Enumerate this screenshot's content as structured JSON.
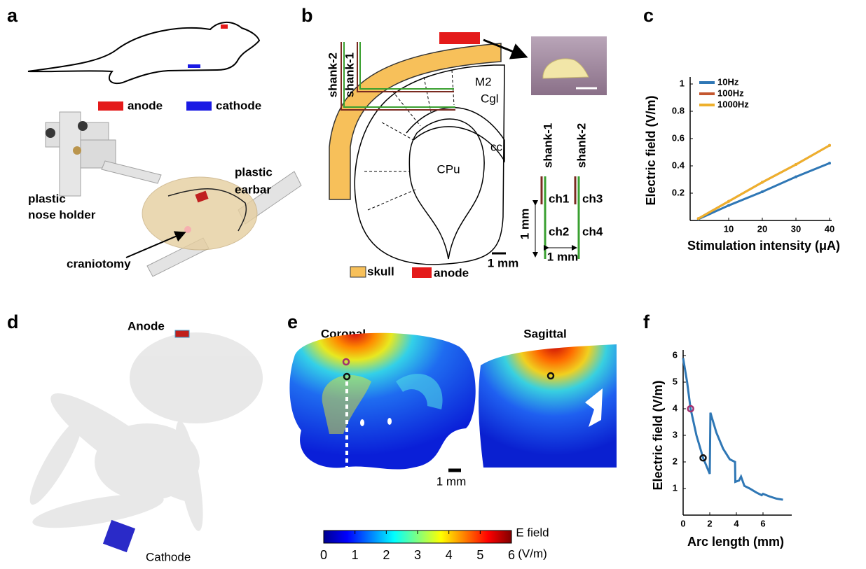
{
  "panels": {
    "labels": [
      "a",
      "b",
      "c",
      "d",
      "e",
      "f"
    ]
  },
  "panel_a": {
    "anode": "anode",
    "cathode": "cathode",
    "earbar": [
      "plastic",
      "earbar"
    ],
    "nose_holder": [
      "plastic",
      "nose holder"
    ],
    "craniotomy": "craniotomy"
  },
  "panel_b": {
    "shanks_left": [
      "shank-2",
      "shank-1"
    ],
    "regions": [
      "M2",
      "Cgl",
      "cc",
      "CPu"
    ],
    "shanks_right": [
      "shank-1",
      "shank-2"
    ],
    "channels": [
      "ch1",
      "ch3",
      "ch2",
      "ch4"
    ],
    "scale_vertical": "1 mm",
    "scale_horizontal": "1 mm",
    "scale_bar": "1 mm",
    "legend": [
      "skull",
      "anode"
    ]
  },
  "panel_d": {
    "anode": "Anode",
    "cathode": "Cathode"
  },
  "panel_e": {
    "views": [
      "Coronal",
      "Sagittal"
    ],
    "scale_bar": "1 mm",
    "colorbar": {
      "lim": [
        0,
        6
      ],
      "ticks": [
        0,
        1,
        2,
        3,
        4,
        5,
        6
      ],
      "label": [
        "E field",
        "(V/m)"
      ]
    }
  },
  "chart_data": [
    {
      "type": "line",
      "xlabel": "Stimulation intensity (μA)",
      "ylabel": "Electric field (V/m)",
      "xlim": [
        0,
        40
      ],
      "ylim": [
        0,
        1
      ],
      "xticks": [
        10,
        20,
        30,
        40
      ],
      "yticks": [
        0.2,
        0.4,
        0.6,
        0.8,
        1
      ],
      "x": [
        1,
        10,
        20,
        30,
        40
      ],
      "legend": "upper left",
      "series": [
        {
          "name": "10Hz",
          "color": "#2f77b5",
          "values": [
            0.01,
            0.11,
            0.21,
            0.32,
            0.42
          ]
        },
        {
          "name": "100Hz",
          "color": "#c4572f",
          "values": [
            0.014,
            0.14,
            0.28,
            0.41,
            0.55
          ]
        },
        {
          "name": "1000Hz",
          "color": "#eeb02c",
          "values": [
            0.014,
            0.14,
            0.28,
            0.41,
            0.55
          ]
        }
      ]
    },
    {
      "type": "line",
      "xlabel": "Arc length (mm)",
      "ylabel": "Electric field (V/m)",
      "xlim": [
        0,
        8
      ],
      "ylim": [
        0,
        6
      ],
      "xticks": [
        0,
        2,
        4,
        6
      ],
      "yticks": [
        1,
        2,
        3,
        4,
        5,
        6
      ],
      "x": [
        0,
        0.3,
        0.56,
        1,
        1.5,
        2,
        2.05,
        2.5,
        3,
        3.5,
        3.9,
        3.92,
        4.2,
        4.35,
        4.6,
        5,
        5.5,
        5.9,
        6,
        6.5,
        7,
        7.5
      ],
      "series": [
        {
          "color": "#2f77b5",
          "values": [
            5.9,
            5,
            4,
            3,
            2.15,
            1.55,
            3.85,
            3.1,
            2.5,
            2.1,
            2.0,
            1.25,
            1.3,
            1.45,
            1.1,
            1.0,
            0.85,
            0.75,
            0.8,
            0.7,
            0.62,
            0.58
          ]
        }
      ],
      "markers": {
        "x": [
          0.56,
          1.5
        ],
        "values": [
          4,
          2.15
        ],
        "colors": [
          "#a3306e",
          "#111111"
        ]
      }
    }
  ]
}
